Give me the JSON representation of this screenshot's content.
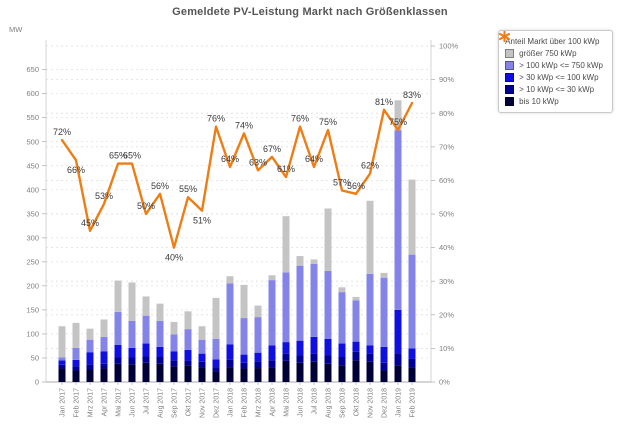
{
  "chart": {
    "title": "Gemeldete PV-Leistung Markt nach Größenklassen",
    "y_left_unit": "MW"
  },
  "legend": {
    "items": [
      {
        "label": "Anteil Markt über 100 kWp",
        "marker": "star",
        "color": "#ED7D14"
      },
      {
        "label": "größer 750 kWp",
        "marker": "square",
        "color": "#C4C4C4"
      },
      {
        "label": "> 100 kWp <= 750 kWp",
        "marker": "square",
        "color": "#8484E8"
      },
      {
        "label": "> 30 kWp <= 100 kWp",
        "marker": "square",
        "color": "#0F0FE1"
      },
      {
        "label": "> 10 kWp <= 30 kWp",
        "marker": "square",
        "color": "#000096"
      },
      {
        "label": "bis 10 kWp",
        "marker": "square",
        "color": "#000038"
      }
    ]
  },
  "chart_data": {
    "type": "bar",
    "subtype": "stacked-bar-with-line",
    "title": "Gemeldete PV-Leistung Markt nach Größenklassen",
    "xlabel": "",
    "ylabel": "MW",
    "categories": [
      "Jan 2017",
      "Feb 2017",
      "Mrz 2017",
      "Apr 2017",
      "Mai 2017",
      "Jun 2017",
      "Jul 2017",
      "Aug 2017",
      "Sep 2017",
      "Okt 2017",
      "Nov 2017",
      "Dez 2017",
      "Jan 2018",
      "Feb 2018",
      "Mrz 2018",
      "Apr 2018",
      "Mai 2018",
      "Jun 2018",
      "Jul 2018",
      "Aug 2018",
      "Sep 2018",
      "Okt 2018",
      "Nov 2018",
      "Dez 2018",
      "Jan 2019",
      "Feb 2019"
    ],
    "stacked_series": [
      {
        "name": "bis 10 kWp",
        "color": "#000038",
        "values": [
          28,
          24,
          26,
          28,
          38,
          37,
          40,
          38,
          33,
          35,
          31,
          22,
          31,
          28,
          29,
          30,
          44,
          40,
          42,
          38,
          35,
          45,
          42,
          24,
          35,
          30
        ]
      },
      {
        "name": "> 10 kWp <= 30 kWp",
        "color": "#000096",
        "values": [
          8,
          9,
          11,
          10,
          13,
          14,
          13,
          14,
          12,
          10,
          11,
          9,
          15,
          12,
          14,
          15,
          15,
          16,
          17,
          18,
          17,
          18,
          17,
          16,
          25,
          18
        ]
      },
      {
        "name": "> 30 kWp <= 100 kWp",
        "color": "#0F0FE1",
        "values": [
          9,
          13,
          25,
          26,
          26,
          20,
          27,
          21,
          19,
          22,
          17,
          16,
          32,
          17,
          18,
          31,
          24,
          30,
          35,
          34,
          28,
          21,
          17,
          33,
          90,
          22
        ]
      },
      {
        "name": "> 100 kWp <= 750 kWp",
        "color": "#8484E8",
        "values": [
          6,
          25,
          26,
          30,
          69,
          56,
          58,
          54,
          35,
          43,
          29,
          43,
          127,
          76,
          74,
          136,
          145,
          156,
          152,
          141,
          107,
          86,
          149,
          144,
          374,
          195
        ]
      },
      {
        "name": "größer 750 kWp",
        "color": "#C4C4C4",
        "values": [
          65,
          52,
          23,
          36,
          65,
          80,
          40,
          36,
          26,
          37,
          28,
          85,
          15,
          69,
          24,
          10,
          117,
          20,
          9,
          130,
          10,
          7,
          152,
          10,
          62,
          156
        ]
      }
    ],
    "line_series": {
      "name": "Anteil Markt über 100 kWp",
      "color": "#ED7D14",
      "unit": "%",
      "values": [
        72,
        66,
        45,
        53,
        65,
        65,
        50,
        56,
        40,
        55,
        51,
        76,
        64,
        74,
        63,
        67,
        61,
        76,
        64,
        75,
        57,
        56,
        62,
        81,
        75,
        83
      ],
      "labels_below_indices": [
        1,
        8,
        10
      ]
    },
    "y_left": {
      "unit": "MW",
      "min": 0,
      "max": 699,
      "tick_step": 50,
      "tick_max": 650
    },
    "y_right": {
      "unit": "%",
      "min": 0,
      "max": 100,
      "tick_step": 10
    },
    "grid": "dashed",
    "legend_position": "top-right"
  }
}
